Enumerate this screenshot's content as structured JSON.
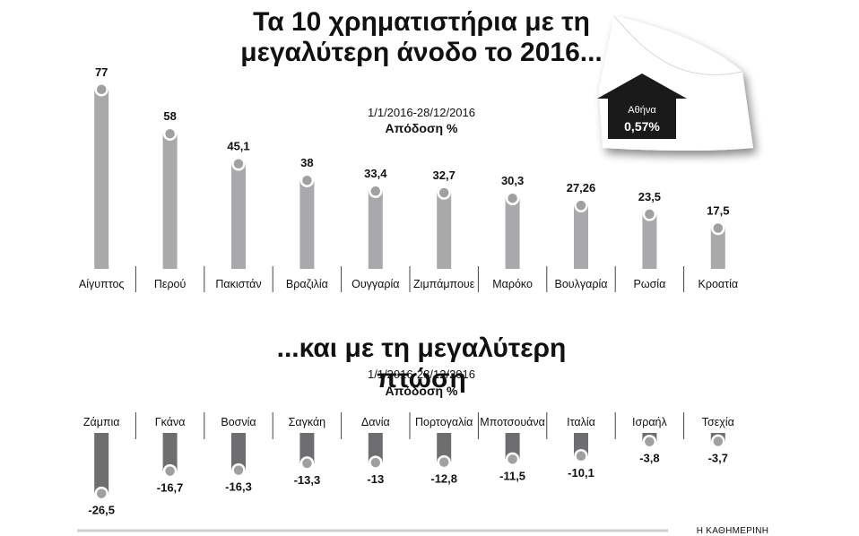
{
  "brand": "Η ΚΑΘΗΜΕΡΙΝΗ",
  "colors": {
    "bar_up": "#a9a9ab",
    "bar_down": "#6e6e70",
    "dot": "#a0a0a2",
    "badge": "#1a1a1a"
  },
  "highlight": {
    "label": "Αθήνα",
    "value": "0,57%",
    "shape": "up-arrow"
  },
  "chart_data": [
    {
      "type": "bar",
      "title": "Τα 10 χρηματιστήρια με τη μεγαλύτερη άνοδο το 2016...",
      "period": "1/1/2016-28/12/2016",
      "ylabel": "Απόδοση %",
      "categories": [
        "Αίγυπτος",
        "Περού",
        "Πακιστάν",
        "Βραζιλία",
        "Ουγγαρία",
        "Ζιμπάμπουε",
        "Μαρόκο",
        "Βουλγαρία",
        "Ρωσία",
        "Κροατία"
      ],
      "values": [
        77,
        58,
        45.1,
        38,
        33.4,
        32.7,
        30.3,
        27.26,
        23.5,
        17.5
      ],
      "value_labels": [
        "77",
        "58",
        "45,1",
        "38",
        "33,4",
        "32,7",
        "30,3",
        "27,26",
        "23,5",
        "17,5"
      ],
      "ylim": [
        0,
        80
      ]
    },
    {
      "type": "bar",
      "title": "...και με τη μεγαλύτερη πτώση",
      "period": "1/1/2016-28/12/2016",
      "ylabel": "Απόδοση %",
      "categories": [
        "Ζάμπια",
        "Γκάνα",
        "Βοσνία",
        "Σαγκάη",
        "Δανία",
        "Πορτογαλία",
        "Μποτσουάνα",
        "Ιταλία",
        "Ισραήλ",
        "Τσεχία"
      ],
      "values": [
        -26.5,
        -16.7,
        -16.3,
        -13.3,
        -13,
        -12.8,
        -11.5,
        -10.1,
        -3.8,
        -3.7
      ],
      "value_labels": [
        "-26,5",
        "-16,7",
        "-16,3",
        "-13,3",
        "-13",
        "-12,8",
        "-11,5",
        "-10,1",
        "-3,8",
        "-3,7"
      ],
      "ylim": [
        -30,
        0
      ]
    }
  ]
}
